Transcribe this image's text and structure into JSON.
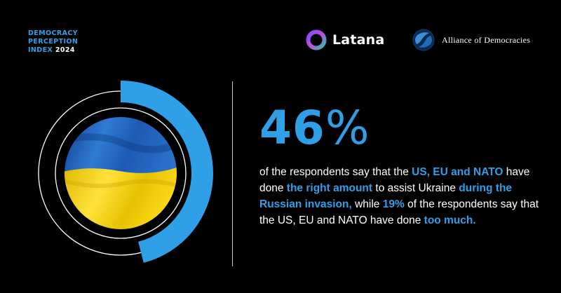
{
  "header": {
    "index_line1": "DEMOCRACY",
    "index_line2": "PERCEPTION",
    "index_line3": "INDEX",
    "index_year": "2024",
    "latana_label": "Latana",
    "alliance_label": "Alliance of Democracies"
  },
  "stat": {
    "value": "46",
    "unit": "%",
    "percent_value": 46,
    "accent_color": "#2f9fe8"
  },
  "statement": {
    "p1": "of the respondents say that the ",
    "h1": "US, EU and NATO",
    "p2": " have done ",
    "h2": "the right amount",
    "p3": " to assist Ukraine ",
    "h3": "during the Russian invasion,",
    "p4": " while ",
    "h4": "19%",
    "p5": " of the respondents say that the US, EU and NATO have done ",
    "h5": "too much."
  },
  "visual": {
    "center_image": "ukraine-flag",
    "flag_colors": [
      "#1a5fb4",
      "#f5d20c"
    ]
  }
}
